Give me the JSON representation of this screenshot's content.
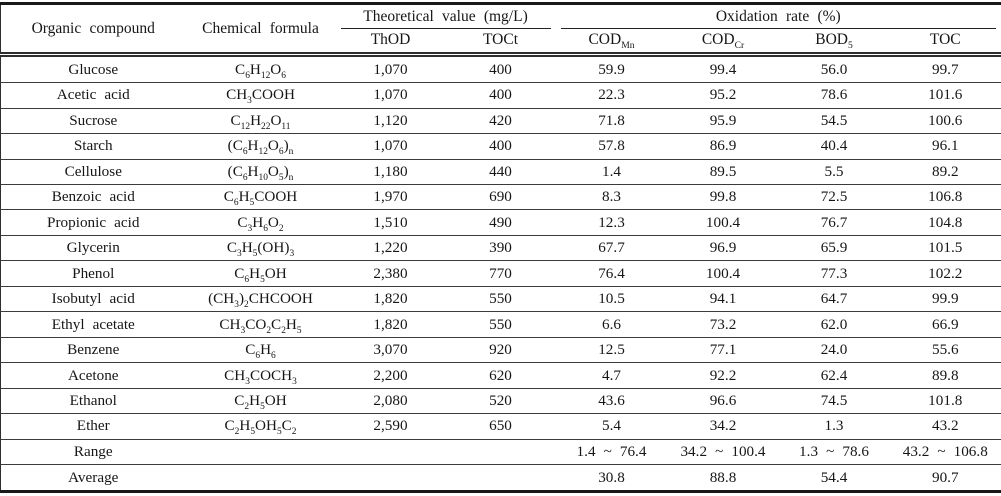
{
  "table": {
    "header": {
      "organic_compound": "Organic compound",
      "chemical_formula": "Chemical formula",
      "theoretical_group": "Theoretical value (mg/L)",
      "oxidation_group": "Oxidation rate (%)",
      "sub_columns": [
        "ThOD",
        "TOCt",
        "COD_{Mn}",
        "COD_{Cr}",
        "BOD_{5}",
        "TOC"
      ]
    },
    "rows": [
      {
        "compound": "Glucose",
        "formula": "C_{6}H_{12}O_{6}",
        "thod": "1,070",
        "toct": "400",
        "cod_mn": "59.9",
        "cod_cr": "99.4",
        "bod5": "56.0",
        "toc": "99.7"
      },
      {
        "compound": "Acetic acid",
        "formula": "CH_{3}COOH",
        "thod": "1,070",
        "toct": "400",
        "cod_mn": "22.3",
        "cod_cr": "95.2",
        "bod5": "78.6",
        "toc": "101.6"
      },
      {
        "compound": "Sucrose",
        "formula": "C_{12}H_{22}O_{11}",
        "thod": "1,120",
        "toct": "420",
        "cod_mn": "71.8",
        "cod_cr": "95.9",
        "bod5": "54.5",
        "toc": "100.6"
      },
      {
        "compound": "Starch",
        "formula": "(C_{6}H_{12}O_{6})_{n}",
        "thod": "1,070",
        "toct": "400",
        "cod_mn": "57.8",
        "cod_cr": "86.9",
        "bod5": "40.4",
        "toc": "96.1"
      },
      {
        "compound": "Cellulose",
        "formula": "(C_{6}H_{10}O_{5})_{n}",
        "thod": "1,180",
        "toct": "440",
        "cod_mn": "1.4",
        "cod_cr": "89.5",
        "bod5": "5.5",
        "toc": "89.2"
      },
      {
        "compound": "Benzoic acid",
        "formula": "C_{6}H_{5}COOH",
        "thod": "1,970",
        "toct": "690",
        "cod_mn": "8.3",
        "cod_cr": "99.8",
        "bod5": "72.5",
        "toc": "106.8"
      },
      {
        "compound": "Propionic acid",
        "formula": "C_{3}H_{6}O_{2}",
        "thod": "1,510",
        "toct": "490",
        "cod_mn": "12.3",
        "cod_cr": "100.4",
        "bod5": "76.7",
        "toc": "104.8"
      },
      {
        "compound": "Glycerin",
        "formula": "C_{3}H_{5}(OH)_{3}",
        "thod": "1,220",
        "toct": "390",
        "cod_mn": "67.7",
        "cod_cr": "96.9",
        "bod5": "65.9",
        "toc": "101.5"
      },
      {
        "compound": "Phenol",
        "formula": "C_{6}H_{5}OH",
        "thod": "2,380",
        "toct": "770",
        "cod_mn": "76.4",
        "cod_cr": "100.4",
        "bod5": "77.3",
        "toc": "102.2"
      },
      {
        "compound": "Isobutyl acid",
        "formula": "(CH_{3})_{2}CHCOOH",
        "thod": "1,820",
        "toct": "550",
        "cod_mn": "10.5",
        "cod_cr": "94.1",
        "bod5": "64.7",
        "toc": "99.9"
      },
      {
        "compound": "Ethyl acetate",
        "formula": "CH_{3}CO_{2}C_{2}H_{5}",
        "thod": "1,820",
        "toct": "550",
        "cod_mn": "6.6",
        "cod_cr": "73.2",
        "bod5": "62.0",
        "toc": "66.9"
      },
      {
        "compound": "Benzene",
        "formula": "C_{6}H_{6}",
        "thod": "3,070",
        "toct": "920",
        "cod_mn": "12.5",
        "cod_cr": "77.1",
        "bod5": "24.0",
        "toc": "55.6"
      },
      {
        "compound": "Acetone",
        "formula": "CH_{3}COCH_{3}",
        "thod": "2,200",
        "toct": "620",
        "cod_mn": "4.7",
        "cod_cr": "92.2",
        "bod5": "62.4",
        "toc": "89.8"
      },
      {
        "compound": "Ethanol",
        "formula": "C_{2}H_{5}OH",
        "thod": "2,080",
        "toct": "520",
        "cod_mn": "43.6",
        "cod_cr": "96.6",
        "bod5": "74.5",
        "toc": "101.8"
      },
      {
        "compound": "Ether",
        "formula": "C_{2}H_{5}OH_{5}C_{2}",
        "thod": "2,590",
        "toct": "650",
        "cod_mn": "5.4",
        "cod_cr": "34.2",
        "bod5": "1.3",
        "toc": "43.2"
      },
      {
        "compound": "Range",
        "formula": "",
        "thod": "",
        "toct": "",
        "cod_mn": "1.4 ~ 76.4",
        "cod_cr": "34.2 ~ 100.4",
        "bod5": "1.3 ~ 78.6",
        "toc": "43.2 ~ 106.8"
      },
      {
        "compound": "Average",
        "formula": "",
        "thod": "",
        "toct": "",
        "cod_mn": "30.8",
        "cod_cr": "88.8",
        "bod5": "54.4",
        "toc": "90.7"
      }
    ]
  }
}
